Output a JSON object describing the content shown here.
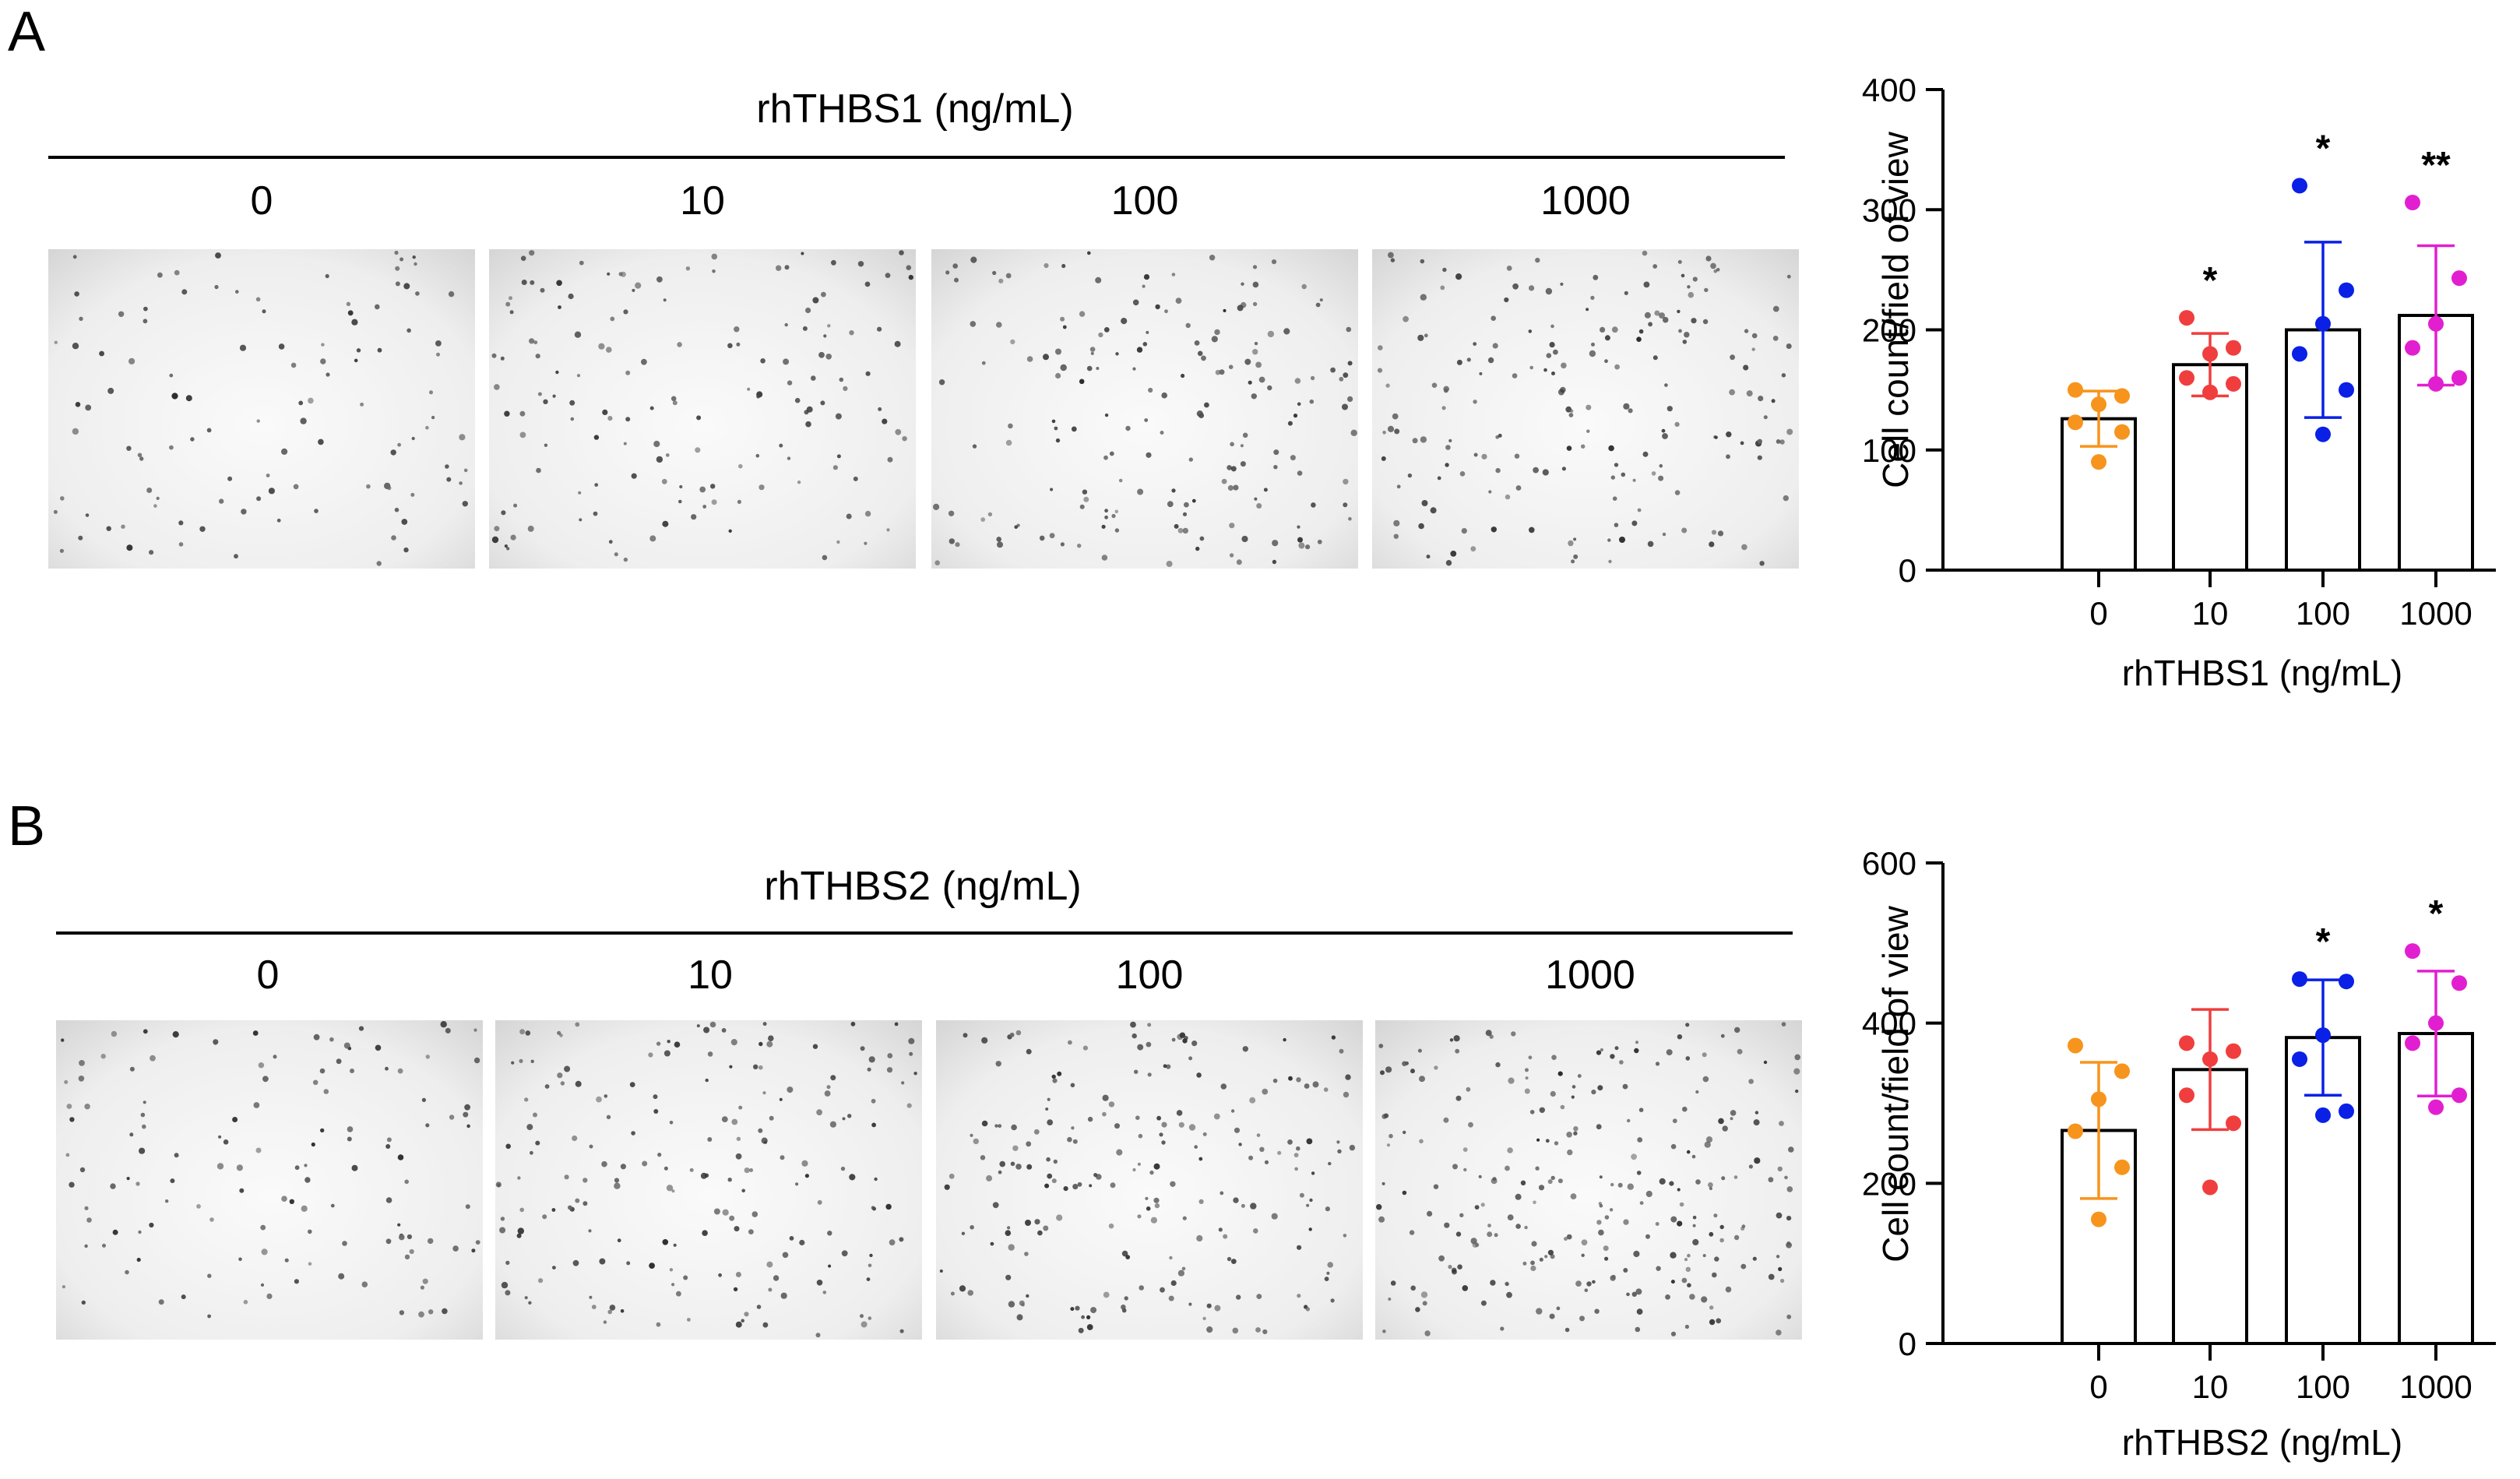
{
  "panels": [
    {
      "letter": "A",
      "treatment": "rhTHBS1 (ng/mL)",
      "concentrations": [
        "0",
        "10",
        "100",
        "1000"
      ]
    },
    {
      "letter": "B",
      "treatment": "rhTHBS2 (ng/mL)",
      "concentrations": [
        "0",
        "10",
        "100",
        "1000"
      ]
    }
  ],
  "chart_data": [
    {
      "type": "bar",
      "ylabel": "Cell count/field of view",
      "xlabel": "rhTHBS1 (ng/mL)",
      "categories": [
        "0",
        "10",
        "100",
        "1000"
      ],
      "ylim": [
        0,
        400
      ],
      "yticks": [
        0,
        100,
        200,
        300,
        400
      ],
      "values": [
        126,
        171,
        200,
        212
      ],
      "error_sd": [
        23,
        26,
        73,
        58
      ],
      "points": [
        [
          150,
          145,
          138,
          123,
          115,
          90
        ],
        [
          210,
          185,
          180,
          160,
          155,
          148
        ],
        [
          320,
          233,
          205,
          180,
          150,
          113
        ],
        [
          306,
          243,
          205,
          185,
          160,
          155
        ]
      ],
      "significance": [
        "",
        "*",
        "*",
        "**"
      ],
      "colors": [
        "#f7941d",
        "#f03e3e",
        "#0a20e6",
        "#e21fd0"
      ]
    },
    {
      "type": "bar",
      "ylabel": "Cell count/field of view",
      "xlabel": "rhTHBS2 (ng/mL)",
      "categories": [
        "0",
        "10",
        "100",
        "1000"
      ],
      "ylim": [
        0,
        600
      ],
      "yticks": [
        0,
        200,
        400,
        600
      ],
      "values": [
        266,
        342,
        382,
        387
      ],
      "error_sd": [
        85,
        75,
        72,
        78
      ],
      "points": [
        [
          372,
          340,
          305,
          265,
          220,
          155
        ],
        [
          375,
          365,
          355,
          310,
          275,
          195
        ],
        [
          455,
          452,
          385,
          355,
          290,
          285
        ],
        [
          490,
          450,
          400,
          375,
          310,
          295
        ]
      ],
      "significance": [
        "",
        "",
        "*",
        "*"
      ],
      "colors": [
        "#f7941d",
        "#f03e3e",
        "#0a20e6",
        "#e21fd0"
      ]
    }
  ]
}
